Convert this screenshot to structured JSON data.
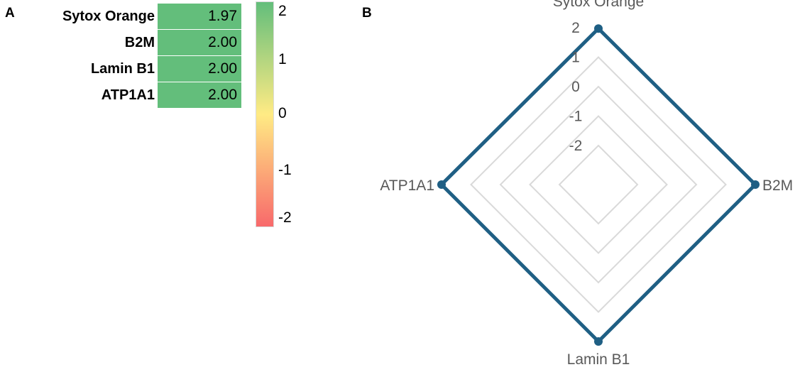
{
  "panel_a_label": "A",
  "panel_b_label": "B",
  "heat_table": [
    {
      "name": "Sytox Orange",
      "value": "1.97"
    },
    {
      "name": "B2M",
      "value": "2.00"
    },
    {
      "name": "Lamin B1",
      "value": "2.00"
    },
    {
      "name": "ATP1A1",
      "value": "2.00"
    }
  ],
  "color_scale": {
    "ticks": [
      "2",
      "1",
      "0",
      "-1",
      "-2"
    ],
    "colors": {
      "high": "#63be7b",
      "mid": "#ffeb84",
      "low": "#f8696b"
    }
  },
  "chart_data": {
    "type": "radar",
    "axes": [
      "Sytox Orange",
      "B2M",
      "Lamin B1",
      "ATP1A1"
    ],
    "series": [
      {
        "values": [
          1.97,
          2.0,
          2.0,
          2.0
        ]
      }
    ],
    "r_ticks": [
      "2",
      "1",
      "0",
      "-1",
      "-2"
    ],
    "rlim": [
      -2,
      2
    ],
    "grid": true,
    "line_color": "#1f5f84",
    "grid_color": "#d9d9d9"
  }
}
